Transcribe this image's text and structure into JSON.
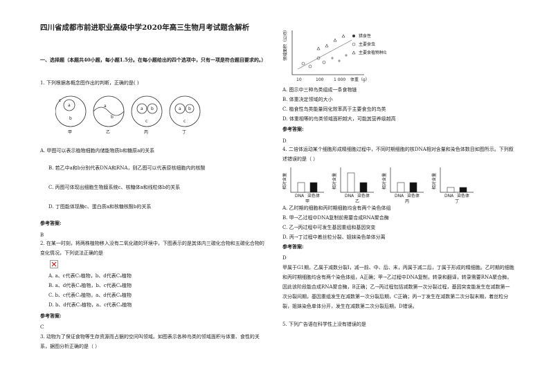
{
  "title": "四川省成都市前进职业高级中学2020年高三生物月考试题含解析",
  "section": "一、选择题（本题共40小题，每小题1.5分。在每小题给出的四个选项中，只有一项是符合题目要求的。）",
  "answer_label": "参考答案:",
  "q1": {
    "stem": "1. 下列根据各概念图作出的判断，正确的是(   )",
    "figure_labels": [
      "甲",
      "乙",
      "丙",
      "丁"
    ],
    "options": [
      "A. 甲图可以表示植物细胞内储能物质b和糖原a的关系",
      "B. 若乙中a和b分别代表DNA和RNA，则乙图可以代表原核细胞内的核酸",
      "C. 丙图可体现出细胞生物膜系统c、核糖体a和线粒体b的关系",
      "D. 丁图能体现酶c、蛋白质a和核糖核酸b的关系"
    ],
    "answer": "B"
  },
  "q2": {
    "stem": "2. 在某一时刻，将两株植物移入没有二氧化碳的环境中，下图表示的是其体内三碳化合物和五碳化合物的变化情况，下列说法正确的是",
    "options": [
      "A. a、c代表C₃植物，b、d代表C₄植物",
      "B. a、d代表C₃植物，b、c代表C₄植物",
      "C. b、c代表C₃植物，a、d代表C₄植物",
      "D. b、d代表C₃植物，a、c代表C₄植物"
    ],
    "answer": "C"
  },
  "q3": {
    "stem": "3. 动物为了保证食物等生存资源而占据的空间叫领域。如图表示各种鸟类的领域面积与体重、食性的关系，据图分析正确的是（     ）",
    "figure": {
      "y_label": "领域面积（公顷）",
      "x_ticks": [
        "10",
        "100",
        "1 000"
      ],
      "x_label": "体重（g）",
      "legend": [
        "猎食性",
        "主要食虫",
        "主要食植物种动物"
      ]
    },
    "options": [
      "A. 图示中三种鸟类组成一条食物链",
      "B. 体重决定领域的大小",
      "C. 植食性鸟类能量同化效率高于主要食虫的鸟类",
      "D. 体重相等的鸟类领域面积越大，可能其营养级越高"
    ],
    "answer": "D"
  },
  "q4": {
    "stem": "4. 二倍体运动某个细胞形成精细胞过程中，不同时期细胞的核DNA相对含量和染色体数目如图所示。下列叙述错误的是（     ）",
    "figure": {
      "y_label": "相对含量",
      "bar_labels": [
        "DNA",
        "染色体"
      ],
      "panels": [
        "甲",
        "乙",
        "丙",
        "丁"
      ]
    },
    "options": [
      "A. 乙时期的细胞和丙时期细胞均含有两个染色体组",
      "B. 甲→乙过程中DNA复制前需要合成RNA聚合酶",
      "C. 乙→丙过程中可发生基因重组和基因突变",
      "D. 丙→丁过程中着丝粒分裂、姐妹染色单体分离"
    ],
    "answer": "D",
    "explanation": "甲属于G1期，乙属于减数分裂Ⅰ，减一前、中、后、末，丙属于减二后，丁属于形成的精细胞。乙时期的细胞和丙时期细胞均含有两个染色体组，A正确；甲→乙过程中DNA复制，转录和翻译，转录需要RNA聚合酶，因此该阶段能合成RNA聚合酶，B正确；乙→丙过程包括减数第一次分裂过程，基因突变能发生在减数第一次分裂间期，基因重组发生在减数第一次分裂后期，C正确；丙→丁发生在减数第二次分裂末期，着丝粒分裂，姐妹染色单体分开，发生在减数第二次分裂后期，D错误。"
  },
  "q5": {
    "stem": "5. 下列广告语在科学性上没有错误的是"
  }
}
